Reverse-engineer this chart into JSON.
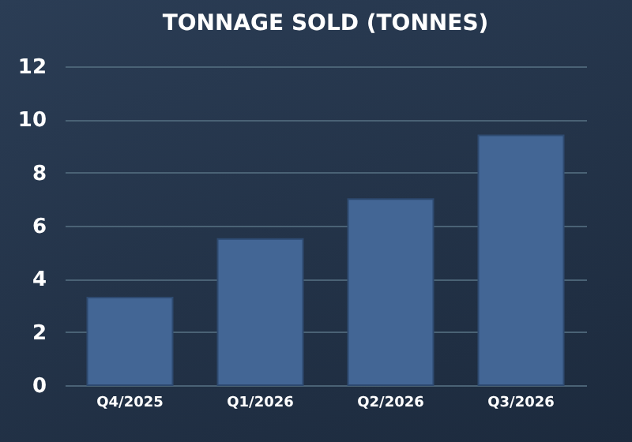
{
  "chart_data": {
    "type": "bar",
    "title": "TONNAGE SOLD (TONNES)",
    "categories": [
      "Q4/2025",
      "Q1/2026",
      "Q2/2026",
      "Q3/2026"
    ],
    "values": [
      3.3,
      5.5,
      7.0,
      9.4
    ],
    "color": "#436695",
    "ylim": [
      0,
      12
    ],
    "yticks": [
      0,
      2,
      4,
      6,
      8,
      10,
      12
    ],
    "grid": "y"
  }
}
